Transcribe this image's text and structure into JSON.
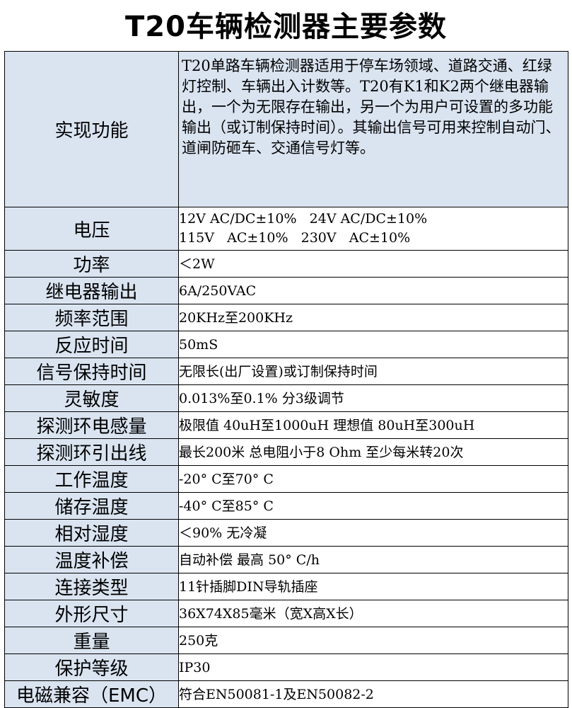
{
  "title": "T20车辆检测器主要参数",
  "rows": [
    {
      "label": "实现功能",
      "value": "T20单路车辆检测器适用于停车场领域、道路交通、红绿灯控制、车辆出入计数等。T20有K1和K2两个继电器输出，一个为无限存在输出，另一个为用户可设置的多功能输出（或订制保持时间）。其输出信号可用来控制自动门、道闸防砸车、交通信号灯等。"
    },
    {
      "label": "电压",
      "lines": [
        "12V AC/DC±10%   24V AC/DC±10%",
        "115V   AC±10%   230V   AC±10%"
      ]
    },
    {
      "label": "功率",
      "value": "＜2W"
    },
    {
      "label": "继电器输出",
      "value": "6A/250VAC"
    },
    {
      "label": "频率范围",
      "value": "20KHz至200KHz"
    },
    {
      "label": "反应时间",
      "value": "50mS"
    },
    {
      "label": "信号保持时间",
      "value": "无限长(出厂设置)或订制保持时间"
    },
    {
      "label": "灵敏度",
      "value": "0.013%至0.1%  分3级调节"
    },
    {
      "label": "探测环电感量",
      "value": "极限值 40uH至1000uH   理想值 80uH至300uH"
    },
    {
      "label": "探测环引出线",
      "value": "最长200米  总电阻小于8 Ohm 至少每米转20次"
    },
    {
      "label": "工作温度",
      "value": "-20° C至70° C"
    },
    {
      "label": "储存温度",
      "value": "-40° C至85° C"
    },
    {
      "label": "相对湿度",
      "value": "＜90% 无冷凝"
    },
    {
      "label": "温度补偿",
      "value": "自动补偿 最高 50° C/h"
    },
    {
      "label": "连接类型",
      "value": "11针插脚DIN导轨插座"
    },
    {
      "label": "外形尺寸",
      "value": "36X74X85毫米（宽X高X长）"
    },
    {
      "label": "重量",
      "value": "250克"
    },
    {
      "label": "保护等级",
      "value": "IP30"
    },
    {
      "label": "电磁兼容（EMC）",
      "value": "符合EN50081-1及EN50082-2"
    }
  ]
}
